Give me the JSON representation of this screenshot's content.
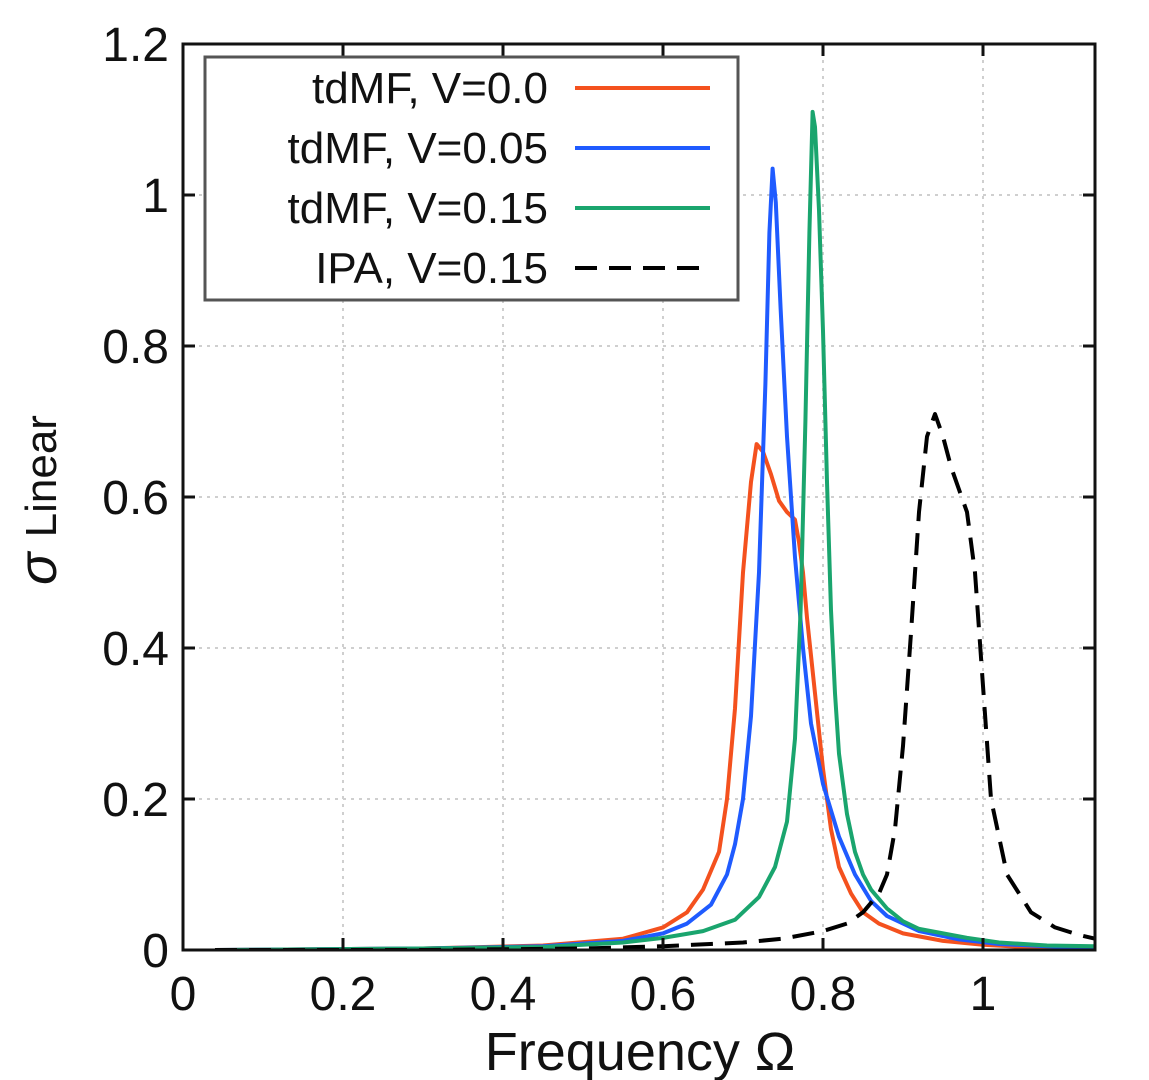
{
  "chart_data": {
    "type": "line",
    "title": "",
    "xlabel": "Frequency  Ω",
    "ylabel_main": "σ",
    "ylabel_sub": "Linear",
    "xlim": [
      0,
      1.14
    ],
    "ylim": [
      0,
      1.2
    ],
    "xticks": [
      0,
      0.2,
      0.4,
      0.6,
      0.8,
      1
    ],
    "xtick_labels": [
      "0",
      "0.2",
      "0.4",
      "0.6",
      "0.8",
      "1"
    ],
    "yticks": [
      0,
      0.2,
      0.4,
      0.6,
      0.8,
      1,
      1.2
    ],
    "ytick_labels": [
      "0",
      "0.2",
      "0.4",
      "0.6",
      "0.8",
      "1",
      "1.2"
    ],
    "grid": true,
    "legend_position": "top-left",
    "series": [
      {
        "name": "tdMF, V=0.0",
        "color": "#f4511e",
        "dash": "solid",
        "points": [
          [
            0.04,
            0.0
          ],
          [
            0.3,
            0.002
          ],
          [
            0.45,
            0.006
          ],
          [
            0.55,
            0.015
          ],
          [
            0.6,
            0.03
          ],
          [
            0.63,
            0.05
          ],
          [
            0.65,
            0.08
          ],
          [
            0.67,
            0.13
          ],
          [
            0.68,
            0.2
          ],
          [
            0.69,
            0.32
          ],
          [
            0.7,
            0.5
          ],
          [
            0.71,
            0.62
          ],
          [
            0.717,
            0.67
          ],
          [
            0.725,
            0.66
          ],
          [
            0.735,
            0.63
          ],
          [
            0.745,
            0.595
          ],
          [
            0.755,
            0.58
          ],
          [
            0.765,
            0.57
          ],
          [
            0.77,
            0.54
          ],
          [
            0.775,
            0.5
          ],
          [
            0.78,
            0.44
          ],
          [
            0.79,
            0.34
          ],
          [
            0.8,
            0.24
          ],
          [
            0.81,
            0.16
          ],
          [
            0.82,
            0.11
          ],
          [
            0.835,
            0.075
          ],
          [
            0.85,
            0.05
          ],
          [
            0.87,
            0.035
          ],
          [
            0.9,
            0.022
          ],
          [
            0.95,
            0.012
          ],
          [
            1.0,
            0.007
          ],
          [
            1.05,
            0.004
          ],
          [
            1.14,
            0.002
          ]
        ]
      },
      {
        "name": "tdMF, V=0.05",
        "color": "#1f5bff",
        "dash": "solid",
        "points": [
          [
            0.04,
            0.0
          ],
          [
            0.3,
            0.002
          ],
          [
            0.45,
            0.005
          ],
          [
            0.55,
            0.012
          ],
          [
            0.6,
            0.022
          ],
          [
            0.63,
            0.035
          ],
          [
            0.66,
            0.06
          ],
          [
            0.68,
            0.1
          ],
          [
            0.69,
            0.14
          ],
          [
            0.7,
            0.2
          ],
          [
            0.71,
            0.31
          ],
          [
            0.72,
            0.5
          ],
          [
            0.728,
            0.75
          ],
          [
            0.733,
            0.95
          ],
          [
            0.737,
            1.035
          ],
          [
            0.741,
            0.99
          ],
          [
            0.747,
            0.85
          ],
          [
            0.755,
            0.68
          ],
          [
            0.765,
            0.52
          ],
          [
            0.775,
            0.4
          ],
          [
            0.785,
            0.3
          ],
          [
            0.8,
            0.22
          ],
          [
            0.82,
            0.15
          ],
          [
            0.84,
            0.1
          ],
          [
            0.86,
            0.065
          ],
          [
            0.88,
            0.045
          ],
          [
            0.92,
            0.025
          ],
          [
            0.97,
            0.014
          ],
          [
            1.02,
            0.008
          ],
          [
            1.08,
            0.005
          ],
          [
            1.14,
            0.003
          ]
        ]
      },
      {
        "name": "tdMF, V=0.15",
        "color": "#1aa56e",
        "dash": "solid",
        "points": [
          [
            0.04,
            0.0
          ],
          [
            0.3,
            0.002
          ],
          [
            0.45,
            0.004
          ],
          [
            0.55,
            0.01
          ],
          [
            0.6,
            0.016
          ],
          [
            0.65,
            0.025
          ],
          [
            0.69,
            0.04
          ],
          [
            0.72,
            0.07
          ],
          [
            0.74,
            0.11
          ],
          [
            0.755,
            0.17
          ],
          [
            0.765,
            0.28
          ],
          [
            0.772,
            0.45
          ],
          [
            0.778,
            0.7
          ],
          [
            0.783,
            0.95
          ],
          [
            0.787,
            1.11
          ],
          [
            0.79,
            1.09
          ],
          [
            0.795,
            0.98
          ],
          [
            0.8,
            0.82
          ],
          [
            0.805,
            0.62
          ],
          [
            0.81,
            0.45
          ],
          [
            0.815,
            0.34
          ],
          [
            0.82,
            0.26
          ],
          [
            0.83,
            0.18
          ],
          [
            0.84,
            0.13
          ],
          [
            0.85,
            0.1
          ],
          [
            0.86,
            0.08
          ],
          [
            0.88,
            0.055
          ],
          [
            0.9,
            0.038
          ],
          [
            0.92,
            0.028
          ],
          [
            0.95,
            0.022
          ],
          [
            0.98,
            0.016
          ],
          [
            1.02,
            0.01
          ],
          [
            1.08,
            0.006
          ],
          [
            1.14,
            0.005
          ]
        ]
      },
      {
        "name": "IPA, V=0.15",
        "color": "#000000",
        "dash": "dashed",
        "points": [
          [
            0.04,
            0.0
          ],
          [
            0.3,
            0.0
          ],
          [
            0.5,
            0.002
          ],
          [
            0.6,
            0.005
          ],
          [
            0.7,
            0.01
          ],
          [
            0.75,
            0.015
          ],
          [
            0.8,
            0.025
          ],
          [
            0.83,
            0.035
          ],
          [
            0.85,
            0.05
          ],
          [
            0.87,
            0.075
          ],
          [
            0.88,
            0.1
          ],
          [
            0.89,
            0.16
          ],
          [
            0.9,
            0.27
          ],
          [
            0.91,
            0.42
          ],
          [
            0.92,
            0.58
          ],
          [
            0.93,
            0.68
          ],
          [
            0.94,
            0.71
          ],
          [
            0.95,
            0.68
          ],
          [
            0.96,
            0.64
          ],
          [
            0.97,
            0.61
          ],
          [
            0.98,
            0.58
          ],
          [
            0.99,
            0.5
          ],
          [
            1.0,
            0.35
          ],
          [
            1.01,
            0.2
          ],
          [
            1.03,
            0.1
          ],
          [
            1.06,
            0.05
          ],
          [
            1.09,
            0.03
          ],
          [
            1.12,
            0.02
          ],
          [
            1.14,
            0.015
          ]
        ]
      }
    ]
  }
}
